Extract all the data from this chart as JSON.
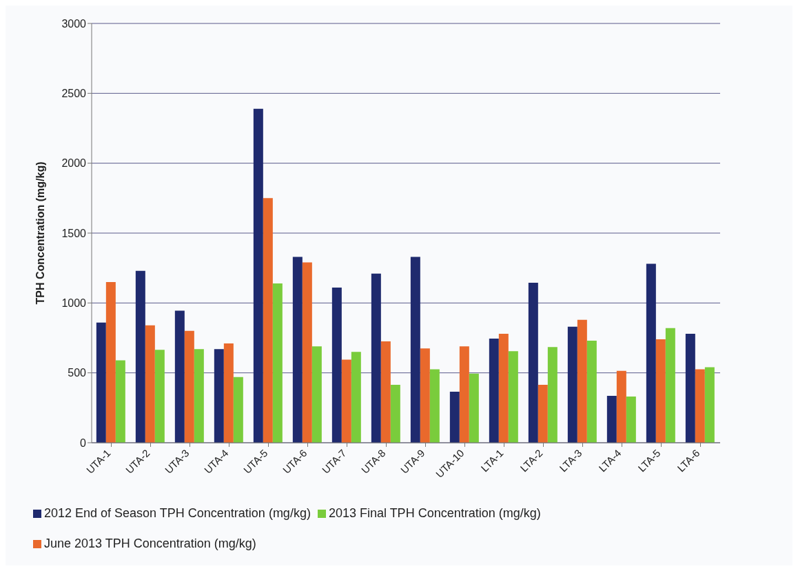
{
  "chart_data": {
    "type": "bar",
    "ylabel": "TPH Concentration (mg/kg)",
    "categories": [
      "UTA-1",
      "UTA-2",
      "UTA-3",
      "UTA-4",
      "UTA-5",
      "UTA-6",
      "UTA-7",
      "UTA-8",
      "UTA-9",
      "UTA-10",
      "LTA-1",
      "LTA-2",
      "LTA-3",
      "LTA-4",
      "LTA-5",
      "LTA-6"
    ],
    "series": [
      {
        "name": "2012 End of Season TPH Concentration (mg/kg)",
        "color": "#1f2a6e",
        "values": [
          860,
          1230,
          945,
          670,
          2390,
          1330,
          1110,
          1210,
          1330,
          365,
          745,
          1145,
          830,
          335,
          1280,
          780
        ]
      },
      {
        "name": "June 2013 TPH Concentration (mg/kg)",
        "color": "#e9692c",
        "values": [
          1150,
          840,
          800,
          710,
          1750,
          1290,
          595,
          725,
          675,
          690,
          780,
          415,
          880,
          515,
          740,
          525
        ]
      },
      {
        "name": "2013 Final TPH Concentration (mg/kg)",
        "color": "#7acc3c",
        "values": [
          590,
          665,
          670,
          470,
          1140,
          690,
          650,
          415,
          525,
          495,
          655,
          685,
          730,
          330,
          820,
          540
        ]
      }
    ],
    "ylim": [
      0,
      3000
    ],
    "yticks": [
      0,
      500,
      1000,
      1500,
      2000,
      2500,
      3000
    ],
    "grid": "y",
    "legend": "bottom"
  }
}
